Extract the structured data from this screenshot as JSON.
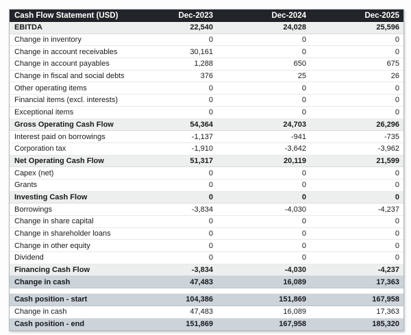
{
  "table": {
    "title": "Cash Flow Statement (USD)",
    "columns": [
      "Dec-2023",
      "Dec-2024",
      "Dec-2025"
    ],
    "rows": [
      {
        "label": "EBITDA",
        "values": [
          "22,540",
          "24,028",
          "25,596"
        ]
      },
      {
        "label": "Change in inventory",
        "values": [
          "0",
          "0",
          "0"
        ]
      },
      {
        "label": "Change in account receivables",
        "values": [
          "30,161",
          "0",
          "0"
        ]
      },
      {
        "label": "Change in account payables",
        "values": [
          "1,288",
          "650",
          "675"
        ]
      },
      {
        "label": "Change in fiscal and social debts",
        "values": [
          "376",
          "25",
          "26"
        ]
      },
      {
        "label": "Other operating items",
        "values": [
          "0",
          "0",
          "0"
        ]
      },
      {
        "label": "Financial items (excl. interests)",
        "values": [
          "0",
          "0",
          "0"
        ]
      },
      {
        "label": "Exceptional items",
        "values": [
          "0",
          "0",
          "0"
        ]
      },
      {
        "label": "Gross Operating Cash Flow",
        "values": [
          "54,364",
          "24,703",
          "26,296"
        ]
      },
      {
        "label": "Interest paid on borrowings",
        "values": [
          "-1,137",
          "-941",
          "-735"
        ]
      },
      {
        "label": "Corporation tax",
        "values": [
          "-1,910",
          "-3,642",
          "-3,962"
        ]
      },
      {
        "label": "Net Operating Cash Flow",
        "values": [
          "51,317",
          "20,119",
          "21,599"
        ]
      },
      {
        "label": "Capex (net)",
        "values": [
          "0",
          "0",
          "0"
        ]
      },
      {
        "label": "Grants",
        "values": [
          "0",
          "0",
          "0"
        ]
      },
      {
        "label": "Investing Cash Flow",
        "values": [
          "0",
          "0",
          "0"
        ]
      },
      {
        "label": "Borrowings",
        "values": [
          "-3,834",
          "-4,030",
          "-4,237"
        ]
      },
      {
        "label": "Change in share capital",
        "values": [
          "0",
          "0",
          "0"
        ]
      },
      {
        "label": "Change in shareholder loans",
        "values": [
          "0",
          "0",
          "0"
        ]
      },
      {
        "label": "Change in other equity",
        "values": [
          "0",
          "0",
          "0"
        ]
      },
      {
        "label": "Dividend",
        "values": [
          "0",
          "0",
          "0"
        ]
      },
      {
        "label": "Financing Cash Flow",
        "values": [
          "-3,834",
          "-4,030",
          "-4,237"
        ]
      },
      {
        "label": "Change in cash",
        "values": [
          "47,483",
          "16,089",
          "17,363"
        ]
      },
      {
        "label": "Cash position - start",
        "values": [
          "104,386",
          "151,869",
          "167,958"
        ]
      },
      {
        "label": "Change in cash",
        "values": [
          "47,483",
          "16,089",
          "17,363"
        ]
      },
      {
        "label": "Cash position - end",
        "values": [
          "151,869",
          "167,958",
          "185,320"
        ]
      }
    ]
  },
  "colors": {
    "header_bg": "#212529",
    "header_text": "#ffffff",
    "subtotal_row_bg": "#edeeee",
    "highlight_row_bg": "#ccd3d9",
    "body_text": "#17191b"
  },
  "chart_data": {
    "type": "table",
    "title": "Cash Flow Statement (USD)",
    "columns": [
      "Dec-2023",
      "Dec-2024",
      "Dec-2025"
    ],
    "rows": [
      [
        "EBITDA",
        22540,
        24028,
        25596
      ],
      [
        "Change in inventory",
        0,
        0,
        0
      ],
      [
        "Change in account receivables",
        30161,
        0,
        0
      ],
      [
        "Change in account payables",
        1288,
        650,
        675
      ],
      [
        "Change in fiscal and social debts",
        376,
        25,
        26
      ],
      [
        "Other operating items",
        0,
        0,
        0
      ],
      [
        "Financial items (excl. interests)",
        0,
        0,
        0
      ],
      [
        "Exceptional items",
        0,
        0,
        0
      ],
      [
        "Gross Operating Cash Flow",
        54364,
        24703,
        26296
      ],
      [
        "Interest paid on borrowings",
        -1137,
        -941,
        -735
      ],
      [
        "Corporation tax",
        -1910,
        -3642,
        -3962
      ],
      [
        "Net Operating Cash Flow",
        51317,
        20119,
        21599
      ],
      [
        "Capex (net)",
        0,
        0,
        0
      ],
      [
        "Grants",
        0,
        0,
        0
      ],
      [
        "Investing Cash Flow",
        0,
        0,
        0
      ],
      [
        "Borrowings",
        -3834,
        -4030,
        -4237
      ],
      [
        "Change in share capital",
        0,
        0,
        0
      ],
      [
        "Change in shareholder loans",
        0,
        0,
        0
      ],
      [
        "Change in other equity",
        0,
        0,
        0
      ],
      [
        "Dividend",
        0,
        0,
        0
      ],
      [
        "Financing Cash Flow",
        -3834,
        -4030,
        -4237
      ],
      [
        "Change in cash",
        47483,
        16089,
        17363
      ],
      [
        "Cash position - start",
        104386,
        151869,
        167958
      ],
      [
        "Change in cash",
        47483,
        16089,
        17363
      ],
      [
        "Cash position - end",
        151869,
        167958,
        185320
      ]
    ]
  }
}
